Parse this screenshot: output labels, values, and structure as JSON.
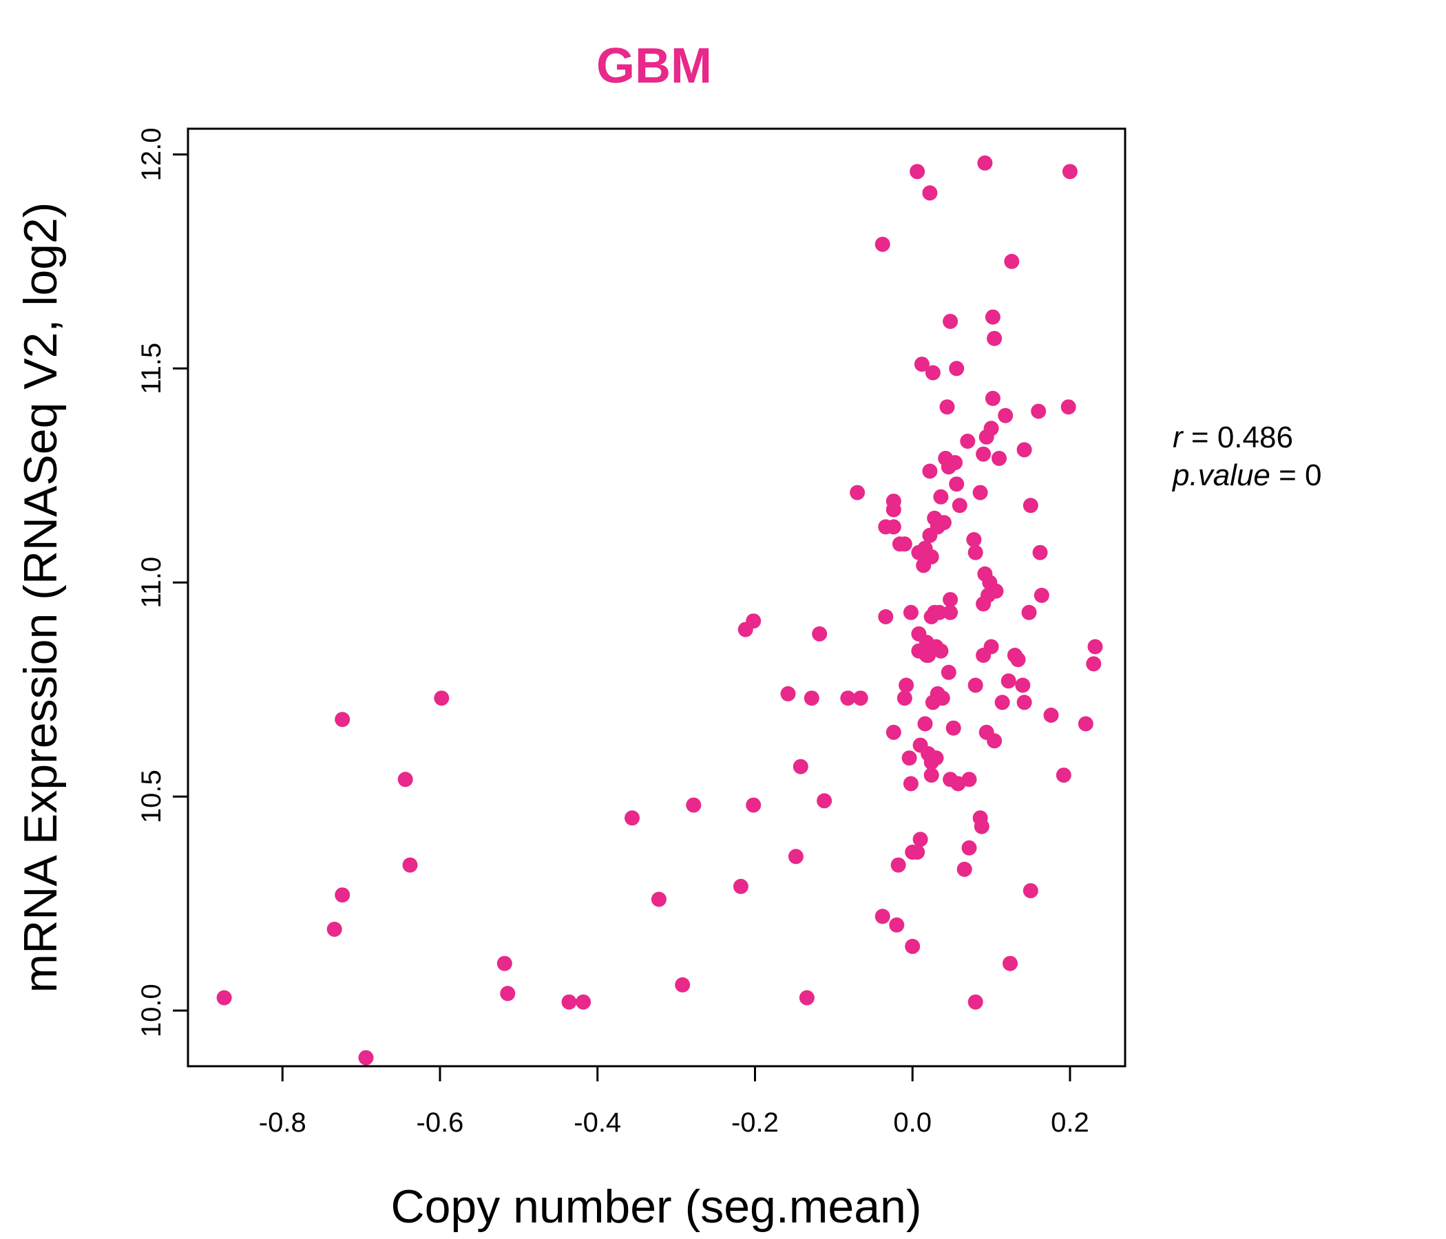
{
  "chart_data": {
    "type": "scatter",
    "title": "GBM",
    "xlabel": "Copy number (seg.mean)",
    "ylabel": "mRNA Expression (RNASeq V2, log2)",
    "xlim": [
      -0.92,
      0.27
    ],
    "ylim": [
      9.87,
      12.06
    ],
    "x_ticks": [
      -0.8,
      -0.6,
      -0.4,
      -0.2,
      0.0,
      0.2
    ],
    "x_tick_labels": [
      "-0.8",
      "-0.6",
      "-0.4",
      "-0.2",
      "0.0",
      "0.2"
    ],
    "y_ticks": [
      10.0,
      10.5,
      11.0,
      11.5,
      12.0
    ],
    "y_tick_labels": [
      "10.0",
      "10.5",
      "11.0",
      "11.5",
      "12.0"
    ],
    "grid": false,
    "color": "#e8288a",
    "stats": {
      "r_label": "r",
      "r_value": "0.486",
      "p_label": "p.value",
      "p_value": "0"
    },
    "points": [
      [
        -0.874,
        10.03
      ],
      [
        -0.724,
        10.68
      ],
      [
        -0.724,
        10.27
      ],
      [
        -0.734,
        10.19
      ],
      [
        -0.694,
        9.89
      ],
      [
        -0.644,
        10.54
      ],
      [
        -0.638,
        10.34
      ],
      [
        -0.598,
        10.73
      ],
      [
        -0.518,
        10.11
      ],
      [
        -0.514,
        10.04
      ],
      [
        -0.436,
        10.02
      ],
      [
        -0.418,
        10.02
      ],
      [
        -0.356,
        10.45
      ],
      [
        -0.322,
        10.26
      ],
      [
        -0.292,
        10.06
      ],
      [
        -0.278,
        10.48
      ],
      [
        -0.218,
        10.29
      ],
      [
        -0.212,
        10.89
      ],
      [
        -0.202,
        10.91
      ],
      [
        -0.202,
        10.48
      ],
      [
        -0.158,
        10.74
      ],
      [
        -0.148,
        10.36
      ],
      [
        -0.142,
        10.57
      ],
      [
        -0.134,
        10.03
      ],
      [
        -0.128,
        10.73
      ],
      [
        -0.118,
        10.88
      ],
      [
        -0.112,
        10.49
      ],
      [
        -0.082,
        10.73
      ],
      [
        -0.066,
        10.73
      ],
      [
        -0.07,
        11.21
      ],
      [
        -0.038,
        11.79
      ],
      [
        -0.038,
        10.22
      ],
      [
        -0.034,
        11.13
      ],
      [
        -0.034,
        10.92
      ],
      [
        -0.024,
        11.13
      ],
      [
        -0.024,
        11.19
      ],
      [
        -0.024,
        11.17
      ],
      [
        -0.024,
        10.65
      ],
      [
        -0.02,
        10.2
      ],
      [
        -0.018,
        10.34
      ],
      [
        -0.016,
        11.09
      ],
      [
        -0.01,
        11.09
      ],
      [
        -0.01,
        10.73
      ],
      [
        -0.008,
        10.76
      ],
      [
        -0.004,
        10.59
      ],
      [
        -0.002,
        10.53
      ],
      [
        -0.002,
        10.93
      ],
      [
        0.0,
        10.37
      ],
      [
        0.0,
        10.15
      ],
      [
        0.006,
        11.96
      ],
      [
        0.006,
        10.37
      ],
      [
        0.008,
        11.07
      ],
      [
        0.008,
        10.88
      ],
      [
        0.008,
        10.84
      ],
      [
        0.01,
        10.62
      ],
      [
        0.01,
        10.4
      ],
      [
        0.012,
        11.51
      ],
      [
        0.014,
        11.04
      ],
      [
        0.016,
        11.08
      ],
      [
        0.016,
        10.67
      ],
      [
        0.018,
        10.86
      ],
      [
        0.018,
        10.83
      ],
      [
        0.02,
        10.83
      ],
      [
        0.02,
        10.6
      ],
      [
        0.022,
        11.91
      ],
      [
        0.022,
        11.26
      ],
      [
        0.022,
        11.11
      ],
      [
        0.024,
        11.06
      ],
      [
        0.024,
        10.92
      ],
      [
        0.024,
        10.58
      ],
      [
        0.024,
        10.55
      ],
      [
        0.026,
        11.49
      ],
      [
        0.026,
        10.72
      ],
      [
        0.028,
        11.15
      ],
      [
        0.028,
        10.93
      ],
      [
        0.03,
        10.85
      ],
      [
        0.03,
        10.59
      ],
      [
        0.032,
        11.13
      ],
      [
        0.032,
        10.74
      ],
      [
        0.034,
        10.93
      ],
      [
        0.036,
        11.2
      ],
      [
        0.036,
        11.14
      ],
      [
        0.036,
        10.84
      ],
      [
        0.038,
        10.73
      ],
      [
        0.04,
        11.14
      ],
      [
        0.042,
        11.29
      ],
      [
        0.044,
        11.41
      ],
      [
        0.046,
        11.27
      ],
      [
        0.046,
        10.79
      ],
      [
        0.048,
        11.61
      ],
      [
        0.048,
        10.96
      ],
      [
        0.048,
        10.93
      ],
      [
        0.048,
        10.54
      ],
      [
        0.052,
        10.66
      ],
      [
        0.054,
        11.28
      ],
      [
        0.056,
        11.5
      ],
      [
        0.056,
        11.23
      ],
      [
        0.058,
        10.53
      ],
      [
        0.06,
        11.18
      ],
      [
        0.066,
        10.33
      ],
      [
        0.07,
        11.33
      ],
      [
        0.072,
        10.54
      ],
      [
        0.072,
        10.38
      ],
      [
        0.078,
        11.1
      ],
      [
        0.08,
        11.07
      ],
      [
        0.08,
        10.76
      ],
      [
        0.08,
        10.02
      ],
      [
        0.086,
        11.21
      ],
      [
        0.086,
        10.45
      ],
      [
        0.088,
        10.43
      ],
      [
        0.09,
        11.3
      ],
      [
        0.09,
        10.95
      ],
      [
        0.09,
        10.83
      ],
      [
        0.092,
        11.98
      ],
      [
        0.092,
        11.02
      ],
      [
        0.094,
        11.34
      ],
      [
        0.094,
        10.65
      ],
      [
        0.096,
        10.97
      ],
      [
        0.098,
        11.0
      ],
      [
        0.1,
        11.36
      ],
      [
        0.1,
        10.85
      ],
      [
        0.102,
        11.62
      ],
      [
        0.102,
        11.43
      ],
      [
        0.104,
        11.57
      ],
      [
        0.104,
        10.63
      ],
      [
        0.106,
        10.98
      ],
      [
        0.11,
        11.29
      ],
      [
        0.114,
        10.72
      ],
      [
        0.118,
        11.39
      ],
      [
        0.122,
        10.77
      ],
      [
        0.124,
        10.11
      ],
      [
        0.126,
        11.75
      ],
      [
        0.13,
        10.83
      ],
      [
        0.134,
        10.82
      ],
      [
        0.14,
        10.76
      ],
      [
        0.142,
        11.31
      ],
      [
        0.142,
        10.72
      ],
      [
        0.148,
        10.93
      ],
      [
        0.15,
        11.18
      ],
      [
        0.15,
        10.28
      ],
      [
        0.16,
        11.4
      ],
      [
        0.162,
        11.07
      ],
      [
        0.164,
        10.97
      ],
      [
        0.176,
        10.69
      ],
      [
        0.192,
        10.55
      ],
      [
        0.198,
        11.41
      ],
      [
        0.2,
        11.96
      ],
      [
        0.22,
        10.67
      ],
      [
        0.23,
        10.81
      ],
      [
        0.232,
        10.85
      ]
    ]
  }
}
